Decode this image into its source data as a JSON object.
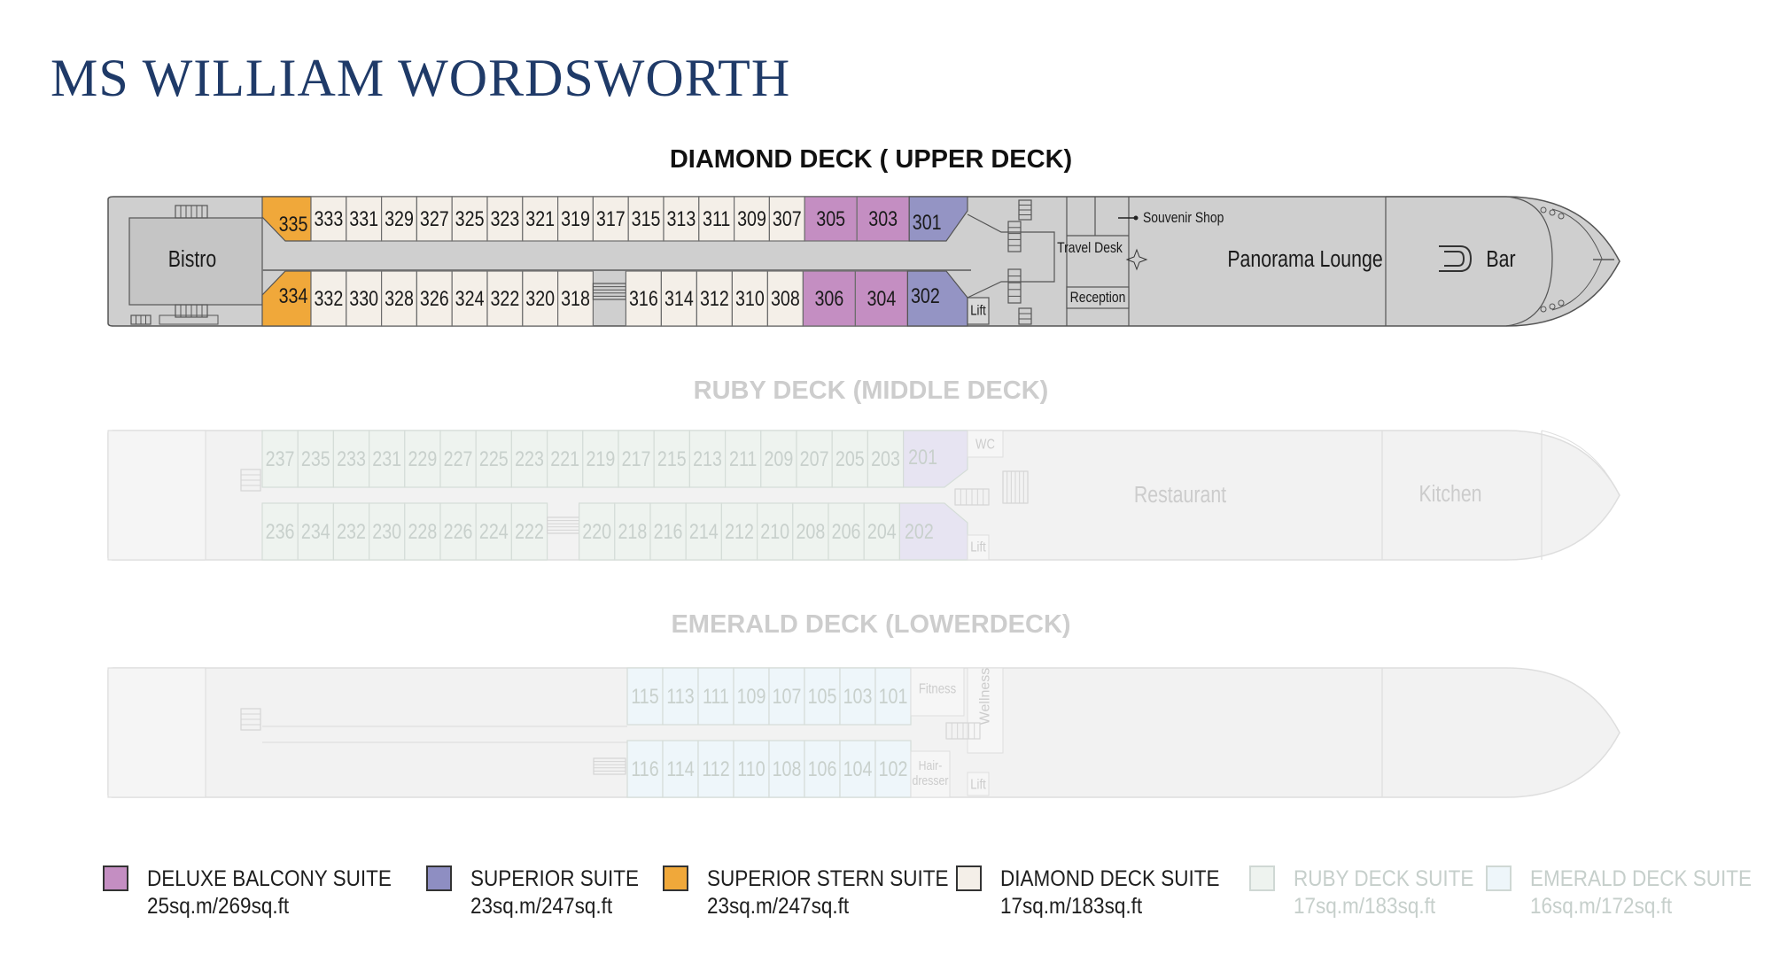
{
  "ship_name": "MS WILLIAM WORDSWORTH",
  "colors": {
    "deluxe_balcony": "#c48ec2",
    "superior": "#9494c4",
    "superior_stern": "#f0a83a",
    "diamond": "#f4efe8",
    "ruby": "#eef3ef",
    "emerald": "#eef6fa",
    "ruby_superior": "#e7e4f2",
    "deck_grey": "#cfcfcf",
    "ghost": "#f2f2f2"
  },
  "decks": [
    {
      "title": "DIAMOND DECK ( UPPER DECK)",
      "cabins_top": [
        "335",
        "333",
        "331",
        "329",
        "327",
        "325",
        "323",
        "321",
        "319",
        "317",
        "315",
        "313",
        "311",
        "309",
        "307",
        "305",
        "303",
        "301"
      ],
      "cabins_bottom": [
        "334",
        "332",
        "330",
        "328",
        "326",
        "324",
        "322",
        "320",
        "318",
        "316",
        "314",
        "312",
        "310",
        "308",
        "306",
        "304",
        "302"
      ],
      "spaces": [
        "Bistro",
        "Travel Desk",
        "Souvenir Shop",
        "Reception",
        "Lift",
        "Panorama Lounge",
        "Bar"
      ]
    },
    {
      "title": "RUBY DECK (MIDDLE DECK)",
      "cabins_top": [
        "237",
        "235",
        "233",
        "231",
        "229",
        "227",
        "225",
        "223",
        "221",
        "219",
        "217",
        "215",
        "213",
        "211",
        "209",
        "207",
        "205",
        "203",
        "201"
      ],
      "cabins_bottom": [
        "236",
        "234",
        "232",
        "230",
        "228",
        "226",
        "224",
        "222",
        "220",
        "218",
        "216",
        "214",
        "212",
        "210",
        "208",
        "206",
        "204",
        "202"
      ],
      "spaces": [
        "WC",
        "Lift",
        "Restaurant",
        "Kitchen"
      ]
    },
    {
      "title": "EMERALD DECK (LOWERDECK)",
      "cabins_top": [
        "115",
        "113",
        "111",
        "109",
        "107",
        "105",
        "103",
        "101"
      ],
      "cabins_bottom": [
        "116",
        "114",
        "112",
        "110",
        "108",
        "106",
        "104",
        "102"
      ],
      "spaces": [
        "Fitness",
        "Wellness",
        "Hair-",
        "dresser",
        "Lift"
      ]
    }
  ],
  "legend": [
    {
      "name": "DELUXE BALCONY SUITE",
      "size": "25sq.m/269sq.ft",
      "color": "#c48ec2",
      "faded": false
    },
    {
      "name": "SUPERIOR SUITE",
      "size": "23sq.m/247sq.ft",
      "color": "#8e8ec2",
      "faded": false
    },
    {
      "name": "SUPERIOR STERN SUITE",
      "size": "23sq.m/247sq.ft",
      "color": "#f0a83a",
      "faded": false
    },
    {
      "name": "DIAMOND DECK SUITE",
      "size": "17sq.m/183sq.ft",
      "color": "#f4efe8",
      "faded": false
    },
    {
      "name": "RUBY DECK SUITE",
      "size": "17sq.m/183sq.ft",
      "color": "#eef3ef",
      "faded": true
    },
    {
      "name": "EMERALD DECK SUITE",
      "size": "16sq.m/172sq.ft",
      "color": "#eef6fa",
      "faded": true
    }
  ]
}
